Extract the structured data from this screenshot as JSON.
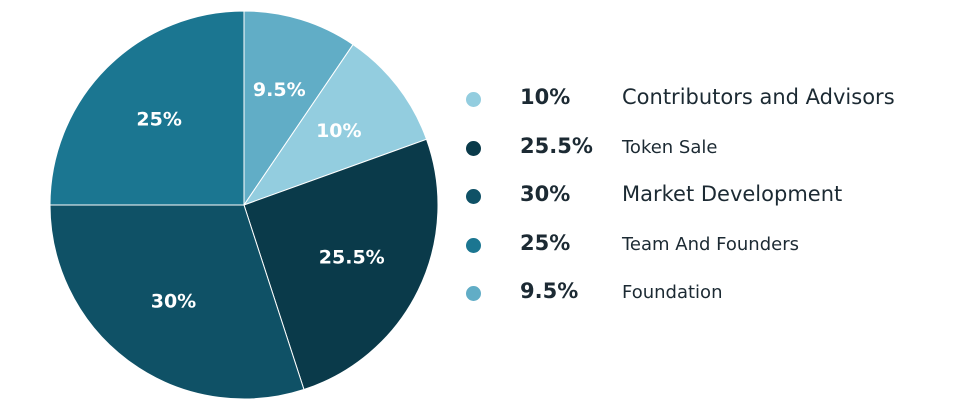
{
  "chart_data": {
    "type": "pie",
    "slices": [
      {
        "label": "Contributors and Advisors",
        "value": 10,
        "value_label": "10%",
        "color": "#93cddf"
      },
      {
        "label": "Token Sale",
        "value": 25.5,
        "value_label": "25.5%",
        "color": "#0a3a4a"
      },
      {
        "label": "Market Development",
        "value": 30,
        "value_label": "30%",
        "color": "#0f5166"
      },
      {
        "label": "Team And Founders",
        "value": 25,
        "value_label": "25%",
        "color": "#1b7691"
      },
      {
        "label": "Foundation",
        "value": 9.5,
        "value_label": "9.5%",
        "color": "#61adc6"
      }
    ],
    "start_angle": "12 o'clock",
    "direction": "clockwise, starting with Foundation",
    "legend_placement": "right"
  },
  "legend": [
    {
      "pct": "10%",
      "name": "Contributors and Advisors",
      "color": "#93cddf"
    },
    {
      "pct": "25.5%",
      "name": "Token Sale",
      "color": "#0a3a4a"
    },
    {
      "pct": "30%",
      "name": "Market Development",
      "color": "#0f5166"
    },
    {
      "pct": "25%",
      "name": "Team And Founders",
      "color": "#1b7691"
    },
    {
      "pct": "9.5%",
      "name": "Foundation",
      "color": "#61adc6"
    }
  ]
}
